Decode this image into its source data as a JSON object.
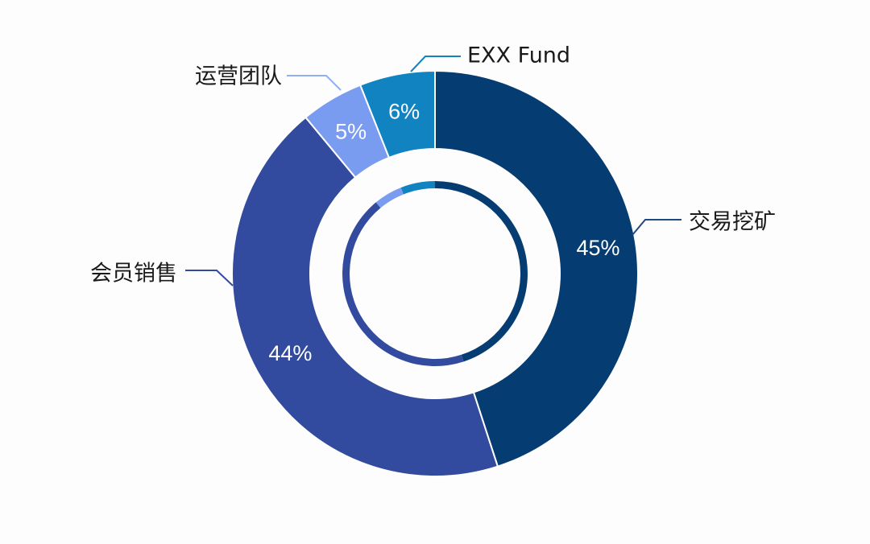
{
  "chart_data": {
    "type": "pie",
    "variant": "donut",
    "categories": [
      "交易挖矿",
      "会员销售",
      "运营团队",
      "EXX Fund"
    ],
    "values": [
      45,
      44,
      5,
      6
    ],
    "value_labels": [
      "45%",
      "44%",
      "5%",
      "6%"
    ],
    "colors": [
      "#053d73",
      "#334b9e",
      "#7a9cf0",
      "#1283c1"
    ],
    "start": "12 o'clock",
    "direction": "clockwise",
    "legend": "callouts"
  }
}
